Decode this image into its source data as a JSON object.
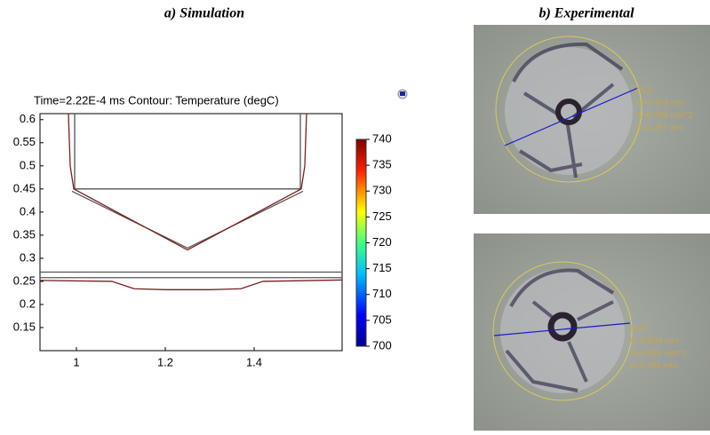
{
  "figure": {
    "titles": [
      "a) Simulation",
      "b) Experimental"
    ],
    "photos": [
      {
        "labels": [
          "DC0",
          "C=0.903 mm",
          "A=0.065 mm^2",
          "d=0.287 mm"
        ]
      },
      {
        "labels": [
          "DC0",
          "C=0.894 mm",
          "A=0.064 mm^2",
          "d=0.285 mm"
        ]
      }
    ]
  },
  "chart_data": {
    "type": "line",
    "title": "Time=2.22E-4 ms   Contour: Temperature (degC)",
    "xlim": [
      0.918,
      1.598
    ],
    "xticks": [
      1,
      1.2,
      1.4
    ],
    "ylim": [
      0.1,
      0.613
    ],
    "yticks": [
      0.15,
      0.2,
      0.25,
      0.3,
      0.35,
      0.4,
      0.45,
      0.5,
      0.55,
      0.6
    ],
    "colorbar_lim": [
      700,
      740
    ],
    "colorbar_ticks": [
      700,
      705,
      710,
      715,
      720,
      725,
      730,
      735,
      740
    ],
    "series": [
      {
        "color": "#555555",
        "x": [
          0.996,
          0.996,
          1.504,
          1.504
        ],
        "y": [
          0.613,
          0.45,
          0.45,
          0.613
        ]
      },
      {
        "color": "#555555",
        "x": [
          0.99,
          1.25,
          1.51
        ],
        "y": [
          0.445,
          0.322,
          0.445
        ]
      },
      {
        "color": "#7a1f1f",
        "x": [
          0.982,
          0.986,
          0.994,
          1.25,
          1.506,
          1.514,
          1.518
        ],
        "y": [
          0.613,
          0.5,
          0.45,
          0.318,
          0.45,
          0.5,
          0.613
        ]
      },
      {
        "color": "#555555",
        "x": [
          0.918,
          1.598
        ],
        "y": [
          0.27,
          0.27
        ]
      },
      {
        "color": "#555555",
        "x": [
          0.918,
          1.598
        ],
        "y": [
          0.258,
          0.258
        ]
      },
      {
        "color": "#7a1f1f",
        "x": [
          0.918,
          1.08,
          1.13,
          1.2,
          1.3,
          1.37,
          1.42,
          1.598
        ],
        "y": [
          0.252,
          0.25,
          0.234,
          0.232,
          0.232,
          0.234,
          0.25,
          0.253
        ]
      }
    ]
  }
}
